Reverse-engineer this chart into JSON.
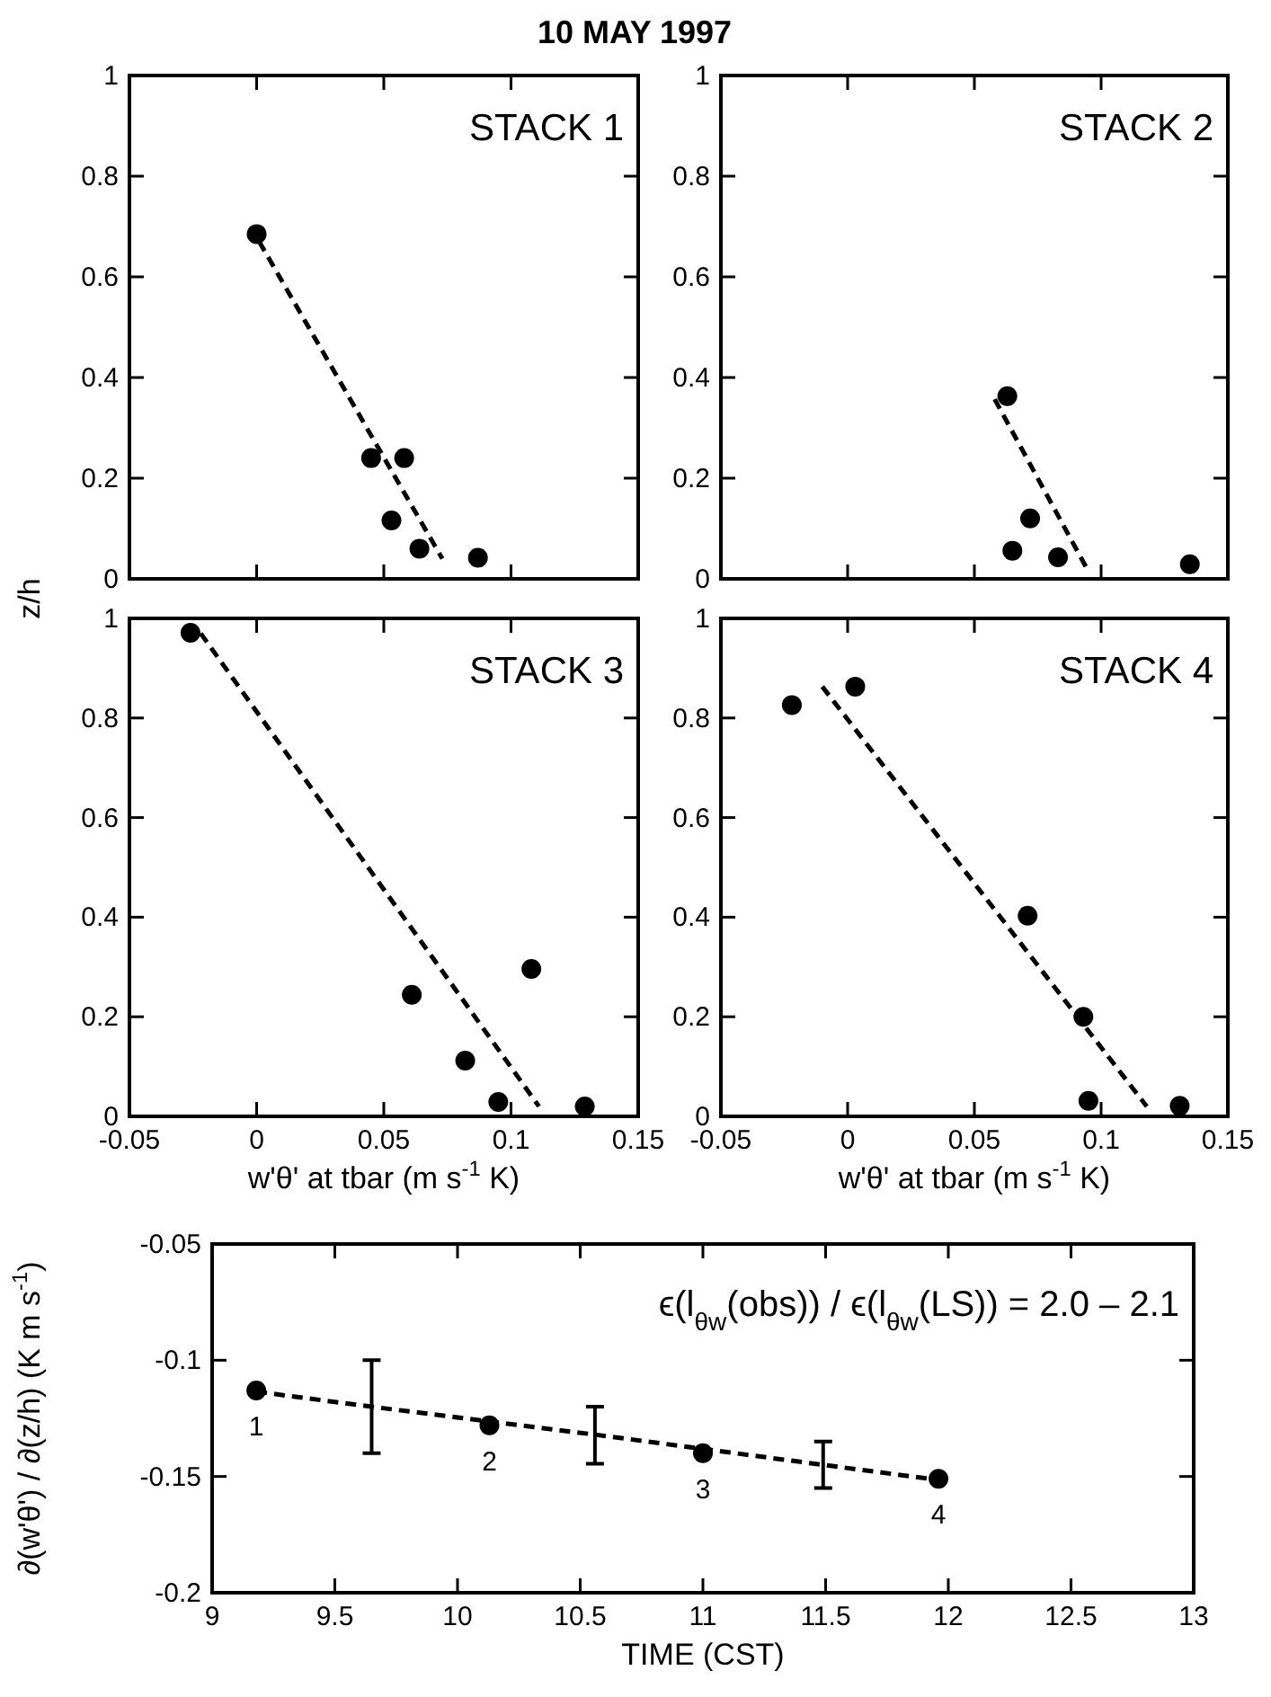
{
  "chart_data": [
    {
      "type": "scatter",
      "title": "10 MAY 1997",
      "ylabel": "z/h",
      "xlim": [
        -0.05,
        0.15
      ],
      "xticks": [
        -0.05,
        0,
        0.05,
        0.1,
        0.15
      ],
      "ylim": [
        0,
        1
      ],
      "yticks": [
        0,
        0.2,
        0.4,
        0.6,
        0.8,
        1
      ],
      "tick_labels": "y",
      "annotations": [
        "STACK 1"
      ],
      "series": [
        {
          "type": "scatter",
          "color": "#000000",
          "marker": "circle",
          "x": [
            0.0,
            0.045,
            0.058,
            0.053,
            0.064,
            0.087
          ],
          "values": [
            0.685,
            0.24,
            0.24,
            0.116,
            0.06,
            0.042
          ]
        },
        {
          "type": "line",
          "color": "#000000",
          "line_style": "dashed",
          "marker": "none",
          "x": [
            0.001,
            0.073
          ],
          "values": [
            0.67,
            0.04
          ]
        }
      ]
    },
    {
      "type": "scatter",
      "xlim": [
        -0.05,
        0.15
      ],
      "xticks": [
        -0.05,
        0,
        0.05,
        0.1,
        0.15
      ],
      "ylim": [
        0,
        1
      ],
      "yticks": [
        0,
        0.2,
        0.4,
        0.6,
        0.8,
        1
      ],
      "tick_labels": "y",
      "annotations": [
        "STACK 2"
      ],
      "series": [
        {
          "type": "scatter",
          "color": "#000000",
          "marker": "circle",
          "x": [
            0.063,
            0.072,
            0.065,
            0.083,
            0.135
          ],
          "values": [
            0.363,
            0.12,
            0.056,
            0.043,
            0.029
          ]
        },
        {
          "type": "line",
          "color": "#000000",
          "line_style": "dashed",
          "marker": "none",
          "x": [
            0.058,
            0.094
          ],
          "values": [
            0.357,
            0.024
          ]
        }
      ]
    },
    {
      "type": "scatter",
      "xlabel": "w'θ' at tbar  (m s$^{-1}$ K)",
      "xlim": [
        -0.05,
        0.15
      ],
      "xticks": [
        -0.05,
        0,
        0.05,
        0.1,
        0.15
      ],
      "ylim": [
        0,
        1
      ],
      "yticks": [
        0,
        0.2,
        0.4,
        0.6,
        0.8,
        1
      ],
      "annotations": [
        "STACK 3"
      ],
      "series": [
        {
          "type": "scatter",
          "color": "#000000",
          "marker": "circle",
          "x": [
            -0.026,
            0.061,
            0.108,
            0.082,
            0.095,
            0.129
          ],
          "values": [
            0.971,
            0.244,
            0.296,
            0.112,
            0.029,
            0.02
          ]
        },
        {
          "type": "line",
          "color": "#000000",
          "line_style": "dashed",
          "marker": "none",
          "x": [
            -0.022,
            0.111
          ],
          "values": [
            0.97,
            0.02
          ]
        }
      ]
    },
    {
      "type": "scatter",
      "xlabel": "w'θ' at tbar  (m s$^{-1}$ K)",
      "xlim": [
        -0.05,
        0.15
      ],
      "xticks": [
        -0.05,
        0,
        0.05,
        0.1,
        0.15
      ],
      "ylim": [
        0,
        1
      ],
      "yticks": [
        0,
        0.2,
        0.4,
        0.6,
        0.8,
        1
      ],
      "annotations": [
        "STACK 4"
      ],
      "series": [
        {
          "type": "scatter",
          "color": "#000000",
          "marker": "circle",
          "x": [
            -0.022,
            0.003,
            0.071,
            0.093,
            0.095,
            0.131
          ],
          "values": [
            0.826,
            0.863,
            0.403,
            0.2,
            0.031,
            0.021
          ]
        },
        {
          "type": "line",
          "color": "#000000",
          "line_style": "dashed",
          "marker": "none",
          "x": [
            -0.01,
            0.118
          ],
          "values": [
            0.863,
            0.02
          ]
        }
      ]
    },
    {
      "type": "scatter",
      "xlabel": "TIME (CST)",
      "ylabel": "∂(w'θ') / ∂(z/h)  (K m s$^{-1}$)",
      "xlim": [
        9,
        13
      ],
      "xticks": [
        9,
        9.5,
        10,
        10.5,
        11,
        11.5,
        12,
        12.5,
        13
      ],
      "ylim": [
        -0.2,
        -0.05
      ],
      "yticks": [
        -0.2,
        -0.15,
        -0.1,
        -0.05
      ],
      "annotations": [
        "ϵ(l$_{θw}$(obs)) / ϵ(l$_{θw}$(LS)) = 2.0 – 2.1",
        {
          "text": "1",
          "x": 9.18,
          "y": -0.113
        },
        {
          "text": "2",
          "x": 10.13,
          "y": -0.128
        },
        {
          "text": "3",
          "x": 11.0,
          "y": -0.14
        },
        {
          "text": "4",
          "x": 11.96,
          "y": -0.151
        }
      ],
      "series": [
        {
          "type": "scatter",
          "color": "#000000",
          "marker": "circle",
          "x": [
            9.18,
            10.13,
            11.0,
            11.96
          ],
          "values": [
            -0.113,
            -0.128,
            -0.14,
            -0.151
          ]
        },
        {
          "type": "line",
          "color": "#000000",
          "line_style": "dashed",
          "marker": "none",
          "x": [
            9.18,
            9.65,
            10.56,
            11.49,
            11.96
          ],
          "values": [
            -0.1135,
            -0.12,
            -0.132,
            -0.145,
            -0.1515
          ],
          "errors": [
            null,
            [
              -0.14,
              -0.1
            ],
            [
              -0.1445,
              -0.12
            ],
            [
              -0.155,
              -0.135
            ],
            null
          ]
        }
      ]
    }
  ]
}
